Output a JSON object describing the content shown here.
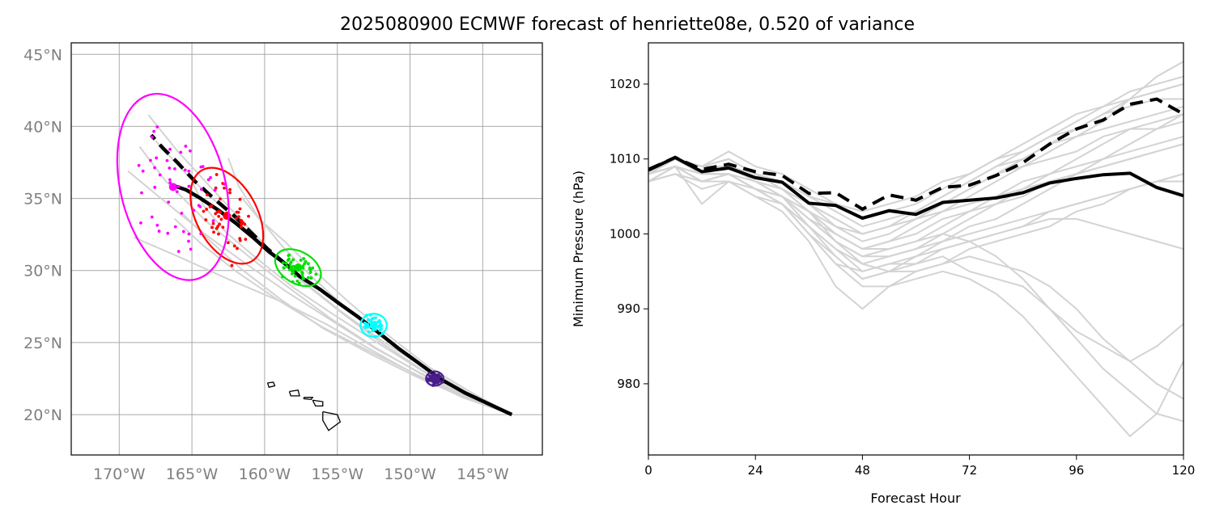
{
  "title": "2025080900 ECMWF forecast of henriette08e, 0.520 of variance",
  "colors": {
    "ensemble": "#d3d3d3",
    "mean": "#000000",
    "ellipse_24h": "#4b1c8c",
    "ellipse_48h": "#00ffff",
    "ellipse_72h": "#00e000",
    "ellipse_96h": "#ff0000",
    "ellipse_120h": "#ff00ff"
  },
  "map": {
    "lat_labels": [
      "20°N",
      "25°N",
      "30°N",
      "35°N",
      "40°N",
      "45°N"
    ],
    "lon_labels": [
      "170°W",
      "165°W",
      "160°W",
      "155°W",
      "150°W",
      "145°W"
    ]
  },
  "pressure": {
    "ylabel": "Minimum Pressure (hPa)",
    "xlabel": "Forecast Hour",
    "yticks": [
      "980",
      "990",
      "1000",
      "1010",
      "1020"
    ],
    "xticks": [
      "0",
      "24",
      "48",
      "72",
      "96",
      "120"
    ]
  },
  "chart_data": [
    {
      "type": "scatter",
      "title": "",
      "xlabel": "",
      "ylabel": "",
      "xlim": [
        -173.3,
        -140.9
      ],
      "ylim": [
        17.2,
        45.8
      ],
      "grid": true,
      "mean_track": {
        "lon": [
          -143.0,
          -144.5,
          -146.2,
          -147.8,
          -149.3,
          -150.8,
          -152.3,
          -153.6,
          -155.0,
          -156.2,
          -157.6,
          -158.5,
          -159.7,
          -160.8,
          -162.0,
          -163.2,
          -164.4,
          -165.4,
          -166.3
        ],
        "lat": [
          20.0,
          20.7,
          21.5,
          22.4,
          23.5,
          24.6,
          25.8,
          26.8,
          27.8,
          28.7,
          29.6,
          30.4,
          31.3,
          32.3,
          33.3,
          34.2,
          35.0,
          35.6,
          35.9
        ]
      },
      "deterministic_track": {
        "lon": [
          -158.5,
          -159.8,
          -161.0,
          -162.2,
          -163.5,
          -164.8,
          -166.0,
          -167.0,
          -167.8
        ],
        "lat": [
          30.4,
          31.5,
          32.7,
          33.9,
          35.0,
          36.2,
          37.5,
          38.5,
          39.4
        ]
      },
      "ensemble_tracks": [
        {
          "lon": [
            -143.0,
            -146.0,
            -149.0,
            -152.0,
            -155.0,
            -157.5,
            -160.0,
            -163.0,
            -166.0,
            -168.0
          ],
          "lat": [
            20.0,
            21.4,
            23.0,
            25.0,
            27.3,
            29.3,
            31.8,
            35.0,
            38.3,
            40.8
          ]
        },
        {
          "lon": [
            -143.0,
            -146.2,
            -149.2,
            -152.3,
            -155.5,
            -158.2,
            -161.0,
            -164.0,
            -166.8,
            -168.6
          ],
          "lat": [
            20.0,
            21.3,
            22.8,
            24.6,
            26.7,
            28.7,
            30.9,
            33.4,
            36.2,
            38.6
          ]
        },
        {
          "lon": [
            -143.0,
            -146.4,
            -149.5,
            -152.5,
            -155.8,
            -159.0,
            -162.5,
            -166.0,
            -169.0
          ],
          "lat": [
            20.0,
            21.2,
            22.7,
            24.4,
            26.3,
            27.9,
            29.4,
            31.0,
            32.3
          ]
        },
        {
          "lon": [
            -143.0,
            -146.0,
            -148.8,
            -151.8,
            -154.5,
            -156.8,
            -158.8,
            -160.5,
            -161.8,
            -162.5
          ],
          "lat": [
            20.0,
            21.5,
            23.2,
            25.3,
            27.5,
            29.6,
            31.7,
            33.8,
            35.9,
            37.8
          ]
        },
        {
          "lon": [
            -143.0,
            -146.1,
            -149.1,
            -152.1,
            -155.2,
            -158.0,
            -160.5,
            -162.6,
            -164.2,
            -165.0
          ],
          "lat": [
            20.0,
            21.4,
            23.0,
            24.9,
            26.9,
            28.8,
            30.8,
            32.6,
            34.5,
            36.2
          ]
        },
        {
          "lon": [
            -143.0,
            -146.3,
            -149.4,
            -152.6,
            -155.9,
            -159.0,
            -161.9,
            -164.3,
            -166.2
          ],
          "lat": [
            20.0,
            21.3,
            22.7,
            24.3,
            26.0,
            27.9,
            29.9,
            31.8,
            33.6
          ]
        },
        {
          "lon": [
            -143.0,
            -145.9,
            -148.7,
            -151.5,
            -154.2,
            -156.6,
            -158.6,
            -160.4,
            -161.6
          ],
          "lat": [
            20.0,
            21.6,
            23.3,
            25.5,
            27.8,
            30.0,
            32.0,
            33.6,
            35.1
          ]
        },
        {
          "lon": [
            -143.0,
            -146.2,
            -149.3,
            -152.4,
            -155.5,
            -158.3,
            -161.2,
            -164.2,
            -167.0,
            -169.4
          ],
          "lat": [
            20.0,
            21.3,
            22.9,
            24.6,
            26.6,
            28.4,
            30.4,
            32.6,
            34.9,
            36.9
          ]
        },
        {
          "lon": [
            -143.0,
            -146.0,
            -148.9,
            -151.9,
            -154.8,
            -157.4,
            -159.9,
            -162.5,
            -165.3,
            -167.5
          ],
          "lat": [
            20.0,
            21.5,
            23.2,
            25.1,
            27.2,
            29.3,
            31.5,
            34.0,
            36.6,
            39.0
          ]
        },
        {
          "lon": [
            -143.0,
            -146.3,
            -149.5,
            -152.7,
            -156.0,
            -158.9,
            -161.6,
            -163.8,
            -165.6
          ],
          "lat": [
            20.0,
            21.2,
            22.6,
            24.2,
            26.0,
            28.0,
            30.1,
            32.1,
            33.9
          ]
        }
      ],
      "ellipses": [
        {
          "hour": 24,
          "lon": -148.3,
          "lat": 22.5,
          "rx": 0.6,
          "ry": 0.5,
          "angle": 0
        },
        {
          "hour": 48,
          "lon": -152.5,
          "lat": 26.2,
          "rx": 0.9,
          "ry": 0.8,
          "angle": 0
        },
        {
          "hour": 72,
          "lon": -157.7,
          "lat": 30.2,
          "rx": 1.7,
          "ry": 1.1,
          "angle": 30
        },
        {
          "hour": 96,
          "lon": -162.6,
          "lat": 33.8,
          "rx": 2.1,
          "ry": 3.6,
          "angle": -28
        },
        {
          "hour": 120,
          "lon": -166.3,
          "lat": 35.8,
          "rx": 3.6,
          "ry": 6.6,
          "angle": -14
        }
      ]
    },
    {
      "type": "line",
      "title": "",
      "xlabel": "Forecast Hour",
      "ylabel": "Minimum Pressure (hPa)",
      "xlim": [
        0,
        120
      ],
      "ylim": [
        970.5,
        1025.5
      ],
      "grid": false,
      "x": [
        0,
        6,
        12,
        18,
        24,
        30,
        36,
        42,
        48,
        54,
        60,
        66,
        72,
        78,
        84,
        90,
        96,
        102,
        108,
        114,
        120
      ],
      "series": [
        {
          "values": [
            1008.5,
            1010.2,
            1008.3,
            1008.8,
            1007.5,
            1006.9,
            1004.1,
            1003.8,
            1002.1,
            1003.1,
            1002.6,
            1004.2,
            1004.5,
            1004.8,
            1005.5,
            1006.8,
            1007.4,
            1007.9,
            1008.1,
            1006.2,
            1005.1
          ]
        },
        {
          "values": [
            1008.6,
            1010.2,
            1008.6,
            1009.3,
            1008.3,
            1007.8,
            1005.4,
            1005.5,
            1003.3,
            1005.2,
            1004.5,
            1006.2,
            1006.5,
            1007.8,
            1009.5,
            1012.0,
            1014.0,
            1015.2,
            1017.3,
            1018.0,
            1016.0
          ]
        }
      ],
      "ensemble": [
        [
          1008,
          1009,
          1007,
          1008,
          1006,
          1005,
          1001,
          997,
          994,
          995,
          997,
          999,
          1001,
          1002,
          1004,
          1006,
          1008,
          1010,
          1012,
          1014,
          1016
        ],
        [
          1007,
          1008,
          1006,
          1007,
          1005,
          1003,
          999,
          993,
          990,
          993,
          995,
          996,
          998,
          999,
          1000,
          1001,
          1003,
          1004,
          1006,
          1007,
          1008
        ],
        [
          1008,
          1009,
          1004,
          1007,
          1006,
          1004,
          1000,
          996,
          995,
          996,
          996,
          997,
          995,
          994,
          993,
          990,
          987,
          985,
          983,
          980,
          978
        ],
        [
          1008,
          1010,
          1009,
          1010,
          1008,
          1006,
          1003,
          1000,
          998,
          999,
          1001,
          1003,
          1005,
          1007,
          1009,
          1011,
          1013,
          1015,
          1018,
          1021,
          1023
        ],
        [
          1007,
          1009,
          1008,
          1009,
          1007,
          1006,
          1004,
          1002,
          1000,
          1001,
          1003,
          1005,
          1007,
          1009,
          1010,
          1012,
          1014,
          1016,
          1018,
          1019,
          1020
        ],
        [
          1008,
          1010,
          1008,
          1009,
          1007,
          1006,
          1003,
          999,
          997,
          998,
          999,
          1000,
          999,
          997,
          994,
          990,
          986,
          982,
          979,
          976,
          975
        ],
        [
          1008,
          1009,
          1008,
          1008,
          1006,
          1005,
          1002,
          999,
          997,
          997,
          998,
          1000,
          1002,
          1004,
          1006,
          1008,
          1010,
          1012,
          1014,
          1015,
          1016
        ],
        [
          1007,
          1008,
          1007,
          1007,
          1005,
          1004,
          1001,
          998,
          996,
          997,
          998,
          999,
          1000,
          1001,
          1002,
          1003,
          1004,
          1005,
          1006,
          1007,
          1008
        ],
        [
          1008,
          1010,
          1009,
          1011,
          1009,
          1008,
          1006,
          1004,
          1003,
          1004,
          1005,
          1007,
          1008,
          1010,
          1011,
          1013,
          1014,
          1016,
          1017,
          1018,
          1018
        ],
        [
          1008,
          1009,
          1007,
          1008,
          1006,
          1004,
          1000,
          996,
          993,
          993,
          994,
          995,
          994,
          992,
          989,
          985,
          981,
          977,
          973,
          976,
          983
        ],
        [
          1008,
          1010,
          1009,
          1009,
          1007,
          1006,
          1004,
          1001,
          999,
          1000,
          1002,
          1004,
          1006,
          1008,
          1010,
          1012,
          1013,
          1014,
          1015,
          1016,
          1017
        ],
        [
          1007,
          1009,
          1007,
          1008,
          1006,
          1004,
          1001,
          998,
          995,
          996,
          997,
          998,
          999,
          1000,
          1001,
          1002,
          1002,
          1001,
          1000,
          999,
          998
        ],
        [
          1008,
          1009,
          1008,
          1009,
          1007,
          1005,
          1003,
          1001,
          1000,
          1001,
          1002,
          1004,
          1006,
          1008,
          1009,
          1010,
          1011,
          1013,
          1014,
          1014,
          1015
        ],
        [
          1008,
          1010,
          1008,
          1008,
          1006,
          1005,
          1002,
          999,
          996,
          995,
          995,
          996,
          997,
          996,
          995,
          993,
          990,
          986,
          983,
          985,
          988
        ],
        [
          1007,
          1008,
          1007,
          1008,
          1006,
          1005,
          1002,
          1000,
          998,
          999,
          1000,
          1002,
          1003,
          1005,
          1007,
          1008,
          1009,
          1010,
          1011,
          1012,
          1013
        ],
        [
          1008,
          1010,
          1009,
          1010,
          1008,
          1007,
          1005,
          1003,
          1001,
          1002,
          1003,
          1005,
          1007,
          1009,
          1011,
          1013,
          1015,
          1017,
          1019,
          1020,
          1021
        ],
        [
          1008,
          1009,
          1007,
          1008,
          1006,
          1004,
          1000,
          997,
          994,
          995,
          996,
          998,
          999,
          1000,
          1001,
          1003,
          1004,
          1005,
          1006,
          1007,
          1007
        ],
        [
          1008,
          1010,
          1008,
          1009,
          1008,
          1006,
          1004,
          1002,
          1000,
          1001,
          1002,
          1003,
          1004,
          1005,
          1006,
          1007,
          1008,
          1009,
          1010,
          1011,
          1012
        ],
        [
          1007,
          1009,
          1008,
          1008,
          1007,
          1005,
          1003,
          1000,
          998,
          998,
          999,
          1001,
          1003,
          1004,
          1005,
          1007,
          1008,
          1009,
          1010,
          1011,
          1012
        ],
        [
          1008,
          1010,
          1009,
          1010,
          1008,
          1007,
          1005,
          1004,
          1002,
          1003,
          1004,
          1006,
          1008,
          1010,
          1012,
          1014,
          1016,
          1017,
          1018,
          1019,
          1020
        ]
      ]
    }
  ]
}
